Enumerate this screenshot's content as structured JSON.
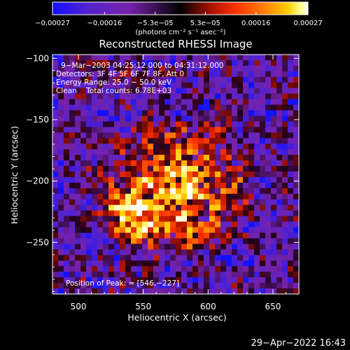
{
  "chart_data": {
    "type": "heatmap",
    "title": "Reconstructed RHESSI Image",
    "xlabel": "Heliocentric X (arcsec)",
    "ylabel": "Heliocentric Y (arcsec)",
    "xlim": [
      480,
      670
    ],
    "ylim": [
      -292,
      -97
    ],
    "x_ticks": [
      500,
      550,
      600,
      650
    ],
    "y_ticks": [
      -100,
      -150,
      -200,
      -250
    ],
    "x_tick_labels": [
      "500",
      "550",
      "600",
      "650"
    ],
    "y_tick_labels": [
      "−100",
      "−150",
      "−200",
      "−250"
    ],
    "colorbar": {
      "range": [
        -0.00027,
        0.00027
      ],
      "tick_values": [
        -0.00027,
        -0.00016,
        -5.3e-05,
        5.3e-05,
        0.00016,
        0.00027
      ],
      "tick_labels": [
        "−0.00027",
        "−0.00016",
        "−5.3e−05",
        "5.3e−05",
        "0.00016",
        "0.00027"
      ],
      "unit_label": "(photons cm⁻² s⁻¹ asec⁻²)",
      "colors": [
        "#1010ff",
        "#5522cc",
        "#7722aa",
        "#000000",
        "#aa1100",
        "#ff3300",
        "#ff8800",
        "#ffcc00",
        "#ffff88",
        "#ffffff"
      ]
    },
    "annotations": [
      "9−Mar−2003 04:25:12.000 to 04:31:12.000",
      "Detectors: 3F 4F 5F 6F 7F 8F, Att 0",
      "Energy Range: 25.0 − 50.0 keV",
      "Clean    Total counts: 6.78E+03"
    ],
    "peak_label": "Position of Peak: = [546,−227]",
    "peak": {
      "x": 546,
      "y": -227
    },
    "grid": false,
    "legend": "none"
  },
  "timestamp": "29−Apr−2022 16:43"
}
